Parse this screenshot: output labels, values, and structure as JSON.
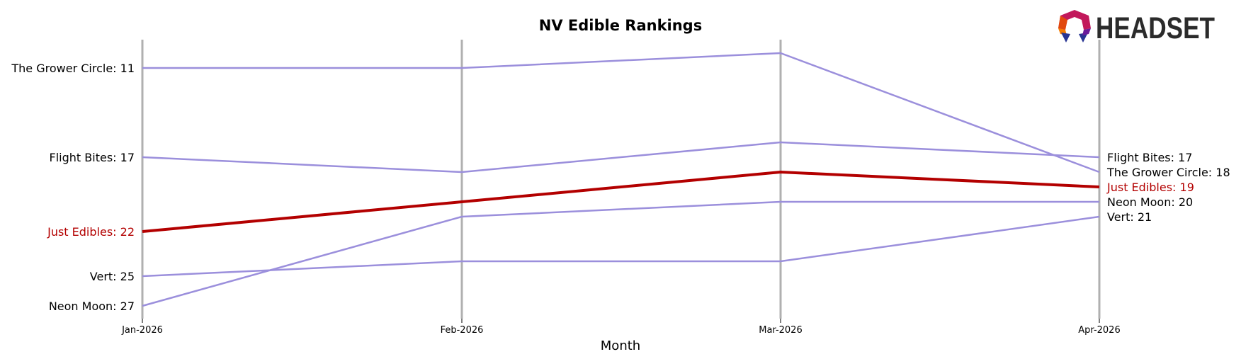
{
  "logo": {
    "text": "HEADSET"
  },
  "chart_data": {
    "type": "line",
    "title": "NV Edible Rankings",
    "xlabel": "Month",
    "ylabel": "",
    "categories": [
      "Jan-2026",
      "Feb-2026",
      "Mar-2026",
      "Apr-2026"
    ],
    "y_inverted": true,
    "ylim": [
      10,
      27
    ],
    "grid": "vertical lines at each month",
    "series": [
      {
        "name": "The Grower Circle",
        "values": [
          11,
          11,
          10,
          18
        ],
        "color": "#9b8fdc",
        "highlight": false
      },
      {
        "name": "Flight Bites",
        "values": [
          17,
          18,
          16,
          17
        ],
        "color": "#9b8fdc",
        "highlight": false
      },
      {
        "name": "Just Edibles",
        "values": [
          22,
          20,
          18,
          19
        ],
        "color": "#b30000",
        "highlight": true
      },
      {
        "name": "Vert",
        "values": [
          25,
          24,
          24,
          21
        ],
        "color": "#9b8fdc",
        "highlight": false
      },
      {
        "name": "Neon Moon",
        "values": [
          27,
          21,
          20,
          20
        ],
        "color": "#9b8fdc",
        "highlight": false
      }
    ],
    "left_labels": [
      {
        "text": "The Grower Circle: 11",
        "value": 11,
        "highlight": false
      },
      {
        "text": "Flight Bites: 17",
        "value": 17,
        "highlight": false
      },
      {
        "text": "Just Edibles: 22",
        "value": 22,
        "highlight": true
      },
      {
        "text": "Vert: 25",
        "value": 25,
        "highlight": false
      },
      {
        "text": "Neon Moon: 27",
        "value": 27,
        "highlight": false
      }
    ],
    "right_labels": [
      {
        "text": "Flight Bites: 17",
        "value": 17,
        "highlight": false
      },
      {
        "text": "The Grower Circle: 18",
        "value": 18,
        "highlight": false
      },
      {
        "text": "Just Edibles: 19",
        "value": 19,
        "highlight": true
      },
      {
        "text": "Neon Moon: 20",
        "value": 20,
        "highlight": false
      },
      {
        "text": "Vert: 21",
        "value": 21,
        "highlight": false
      }
    ],
    "colors": {
      "grid": "#b0b0b0",
      "default_line": "#9b8fdc",
      "highlight": "#b30000",
      "text": "#000000"
    }
  }
}
